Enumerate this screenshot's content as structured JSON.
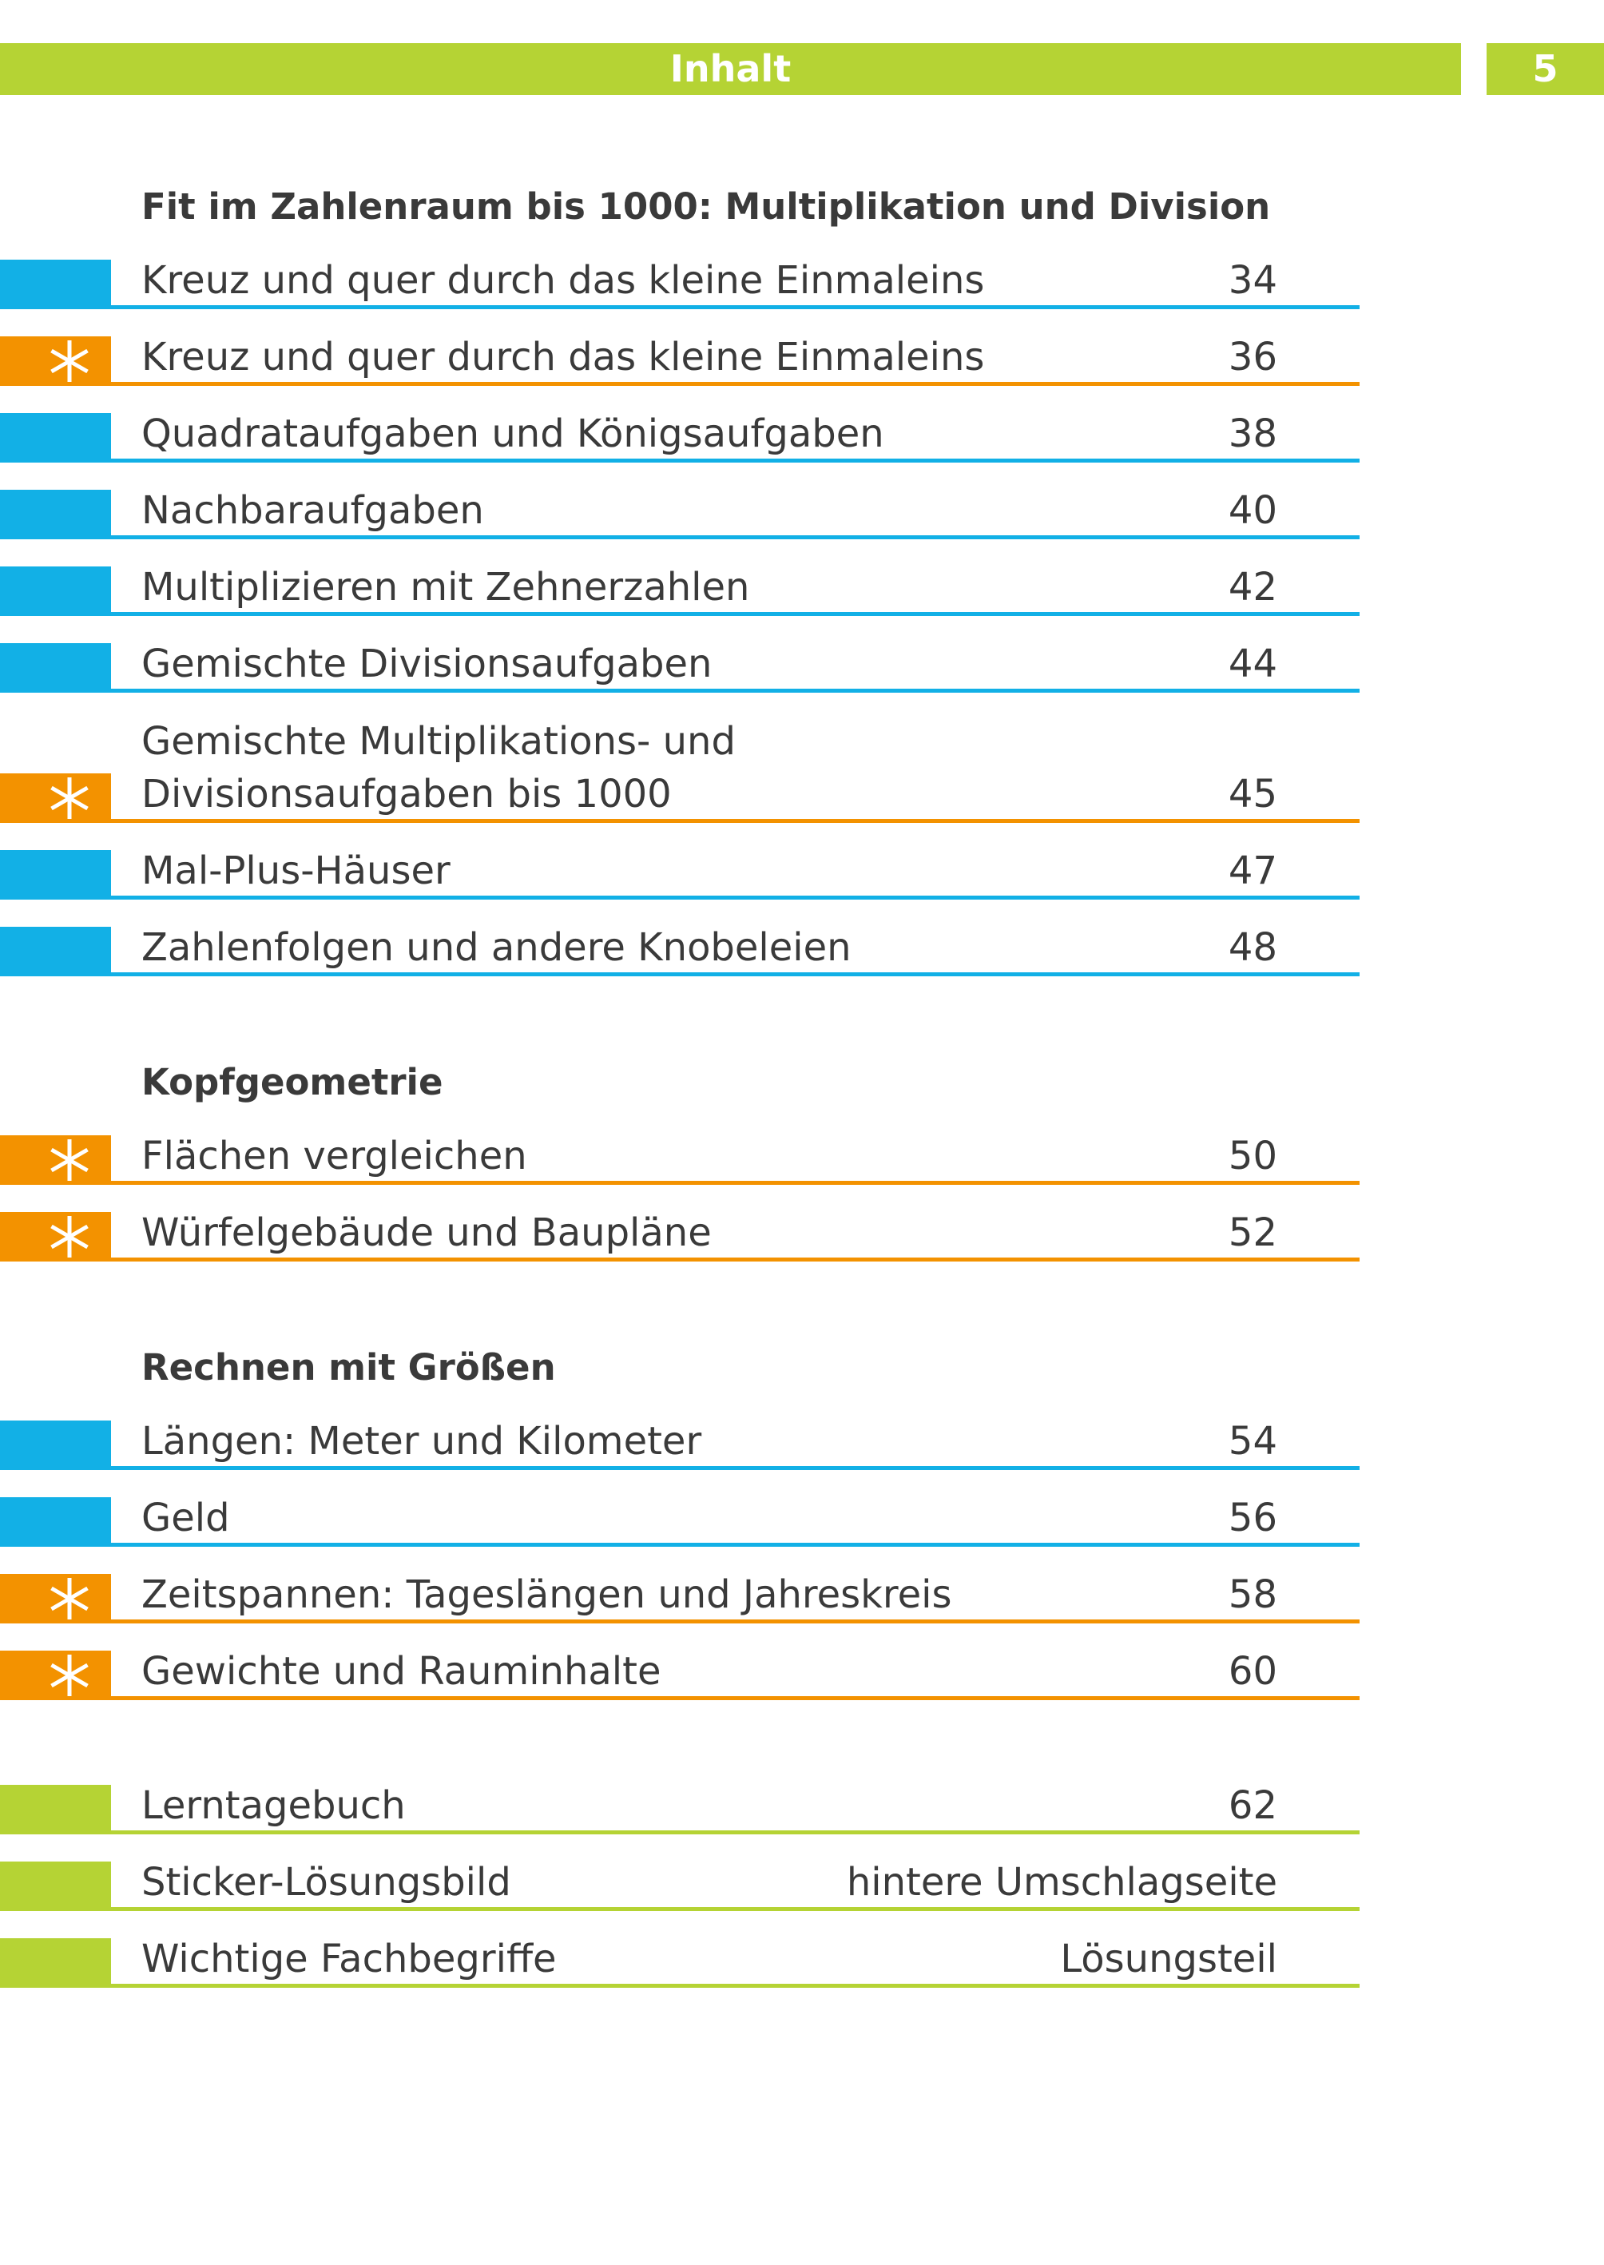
{
  "header": {
    "title": "Inhalt",
    "page_number": "5",
    "color": "#b5d334"
  },
  "sections": [
    {
      "heading": "Fit im Zahlenraum bis 1000: Multiplikation und Division",
      "entries": [
        {
          "title": "Kreuz und quer durch das kleine Einmaleins",
          "page": 34,
          "color": "#12b0e6",
          "star": false
        },
        {
          "title": "Kreuz und quer durch das kleine Einmaleins",
          "page": 36,
          "color": "#f39200",
          "star": true
        },
        {
          "title": "Quadrataufgaben und Königsaufgaben",
          "page": 38,
          "color": "#12b0e6",
          "star": false
        },
        {
          "title": "Nachbaraufgaben",
          "page": 40,
          "color": "#12b0e6",
          "star": false
        },
        {
          "title": "Multiplizieren mit Zehnerzahlen",
          "page": 42,
          "color": "#12b0e6",
          "star": false
        },
        {
          "title": "Gemischte Divisionsaufgaben",
          "page": 44,
          "color": "#12b0e6",
          "star": false
        },
        {
          "title": [
            "Gemischte Multiplikations- und",
            "Divisionsaufgaben bis 1000"
          ],
          "page": 45,
          "color": "#f39200",
          "star": true
        },
        {
          "title": "Mal-Plus-Häuser",
          "page": 47,
          "color": "#12b0e6",
          "star": false
        },
        {
          "title": "Zahlenfolgen und andere Knobeleien",
          "page": 48,
          "color": "#12b0e6",
          "star": false
        }
      ]
    },
    {
      "heading": "Kopfgeometrie",
      "entries": [
        {
          "title": "Flächen vergleichen",
          "page": 50,
          "color": "#f39200",
          "star": true
        },
        {
          "title": "Würfelgebäude und Baupläne",
          "page": 52,
          "color": "#f39200",
          "star": true
        }
      ]
    },
    {
      "heading": "Rechnen mit Größen",
      "entries": [
        {
          "title": "Längen: Meter und Kilometer",
          "page": 54,
          "color": "#12b0e6",
          "star": false
        },
        {
          "title": "Geld",
          "page": 56,
          "color": "#12b0e6",
          "star": false
        },
        {
          "title": "Zeitspannen: Tageslängen und Jahreskreis",
          "page": 58,
          "color": "#f39200",
          "star": true
        },
        {
          "title": "Gewichte und Rauminhalte",
          "page": 60,
          "color": "#f39200",
          "star": true
        }
      ]
    },
    {
      "entries": [
        {
          "title": "Lerntagebuch",
          "page": 62,
          "color": "#b5d334",
          "star": false
        },
        {
          "title": "Sticker-Lösungsbild",
          "page": "hintere Umschlagseite",
          "color": "#b5d334",
          "star": false
        },
        {
          "title": "Wichtige Fachbegriffe",
          "page": "Lösungsteil",
          "color": "#b5d334",
          "star": false
        }
      ]
    }
  ]
}
